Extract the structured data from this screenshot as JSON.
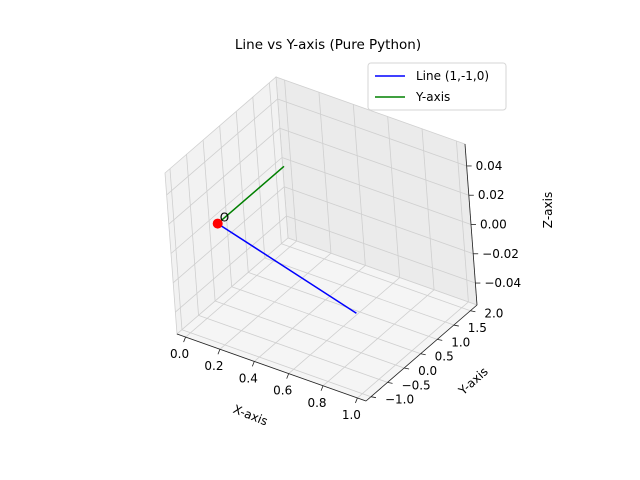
{
  "chart_data": {
    "type": "line3d",
    "title": "Line vs Y-axis (Pure Python)",
    "xlabel": "X-axis",
    "ylabel": "Y-axis",
    "zlabel": "Z-axis",
    "xlim": [
      -0.05,
      1.05
    ],
    "ylim": [
      -1.15,
      2.2
    ],
    "zlim": [
      -0.055,
      0.055
    ],
    "x_ticks": [
      "0.0",
      "0.2",
      "0.4",
      "0.6",
      "0.8",
      "1.0"
    ],
    "y_ticks": [
      "−1.0",
      "−0.5",
      "0.0",
      "0.5",
      "1.0",
      "1.5",
      "2.0"
    ],
    "z_ticks": [
      "−0.04",
      "−0.02",
      "0.00",
      "0.02",
      "0.04"
    ],
    "grid": true,
    "legend_position": "top-right",
    "series": [
      {
        "name": "Line (1,-1,0)",
        "color": "#0000ff",
        "x": [
          0,
          1
        ],
        "y": [
          0,
          -1
        ],
        "z": [
          0,
          0
        ]
      },
      {
        "name": "Y-axis",
        "color": "#008000",
        "x": [
          0,
          0
        ],
        "y": [
          0,
          2
        ],
        "z": [
          0,
          0
        ]
      }
    ],
    "points": [
      {
        "label": "O",
        "x": 0,
        "y": 0,
        "z": 0,
        "color": "#ff0000"
      }
    ]
  }
}
